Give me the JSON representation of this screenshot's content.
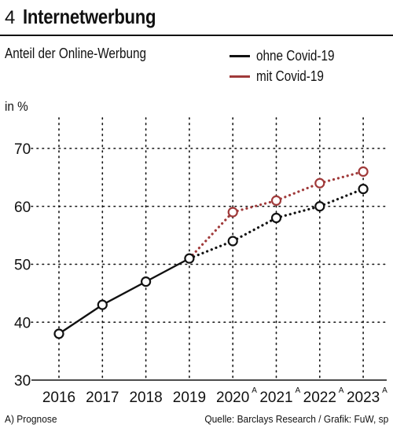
{
  "header": {
    "number": "4",
    "title": "Internetwerbung"
  },
  "subtitle": "Anteil der Online-Werbung",
  "legend": [
    {
      "label": "ohne Covid-19",
      "color": "#111111"
    },
    {
      "label": "mit Covid-19",
      "color": "#a03a3a"
    }
  ],
  "unit": "in %",
  "footer": {
    "left": "A) Prognose",
    "right": "Quelle: Barclays Research / Grafik: FuW, sp"
  },
  "chart_data": {
    "type": "line",
    "categories": [
      "2016",
      "2017",
      "2018",
      "2019",
      "2020",
      "2021",
      "2022",
      "2023"
    ],
    "category_superscripts": [
      "",
      "",
      "",
      "",
      "A",
      "A",
      "A",
      "A"
    ],
    "ylim": [
      30,
      70
    ],
    "yticks": [
      30,
      40,
      50,
      60,
      70
    ],
    "grid": true,
    "legend_position": "top-right",
    "series": [
      {
        "name": "ohne Covid-19",
        "color": "#111111",
        "values": [
          38,
          43,
          47,
          51,
          54,
          58,
          60,
          63
        ]
      },
      {
        "name": "mit Covid-19",
        "color": "#a03a3a",
        "values": [
          null,
          null,
          null,
          51,
          59,
          61,
          64,
          66
        ]
      }
    ]
  }
}
